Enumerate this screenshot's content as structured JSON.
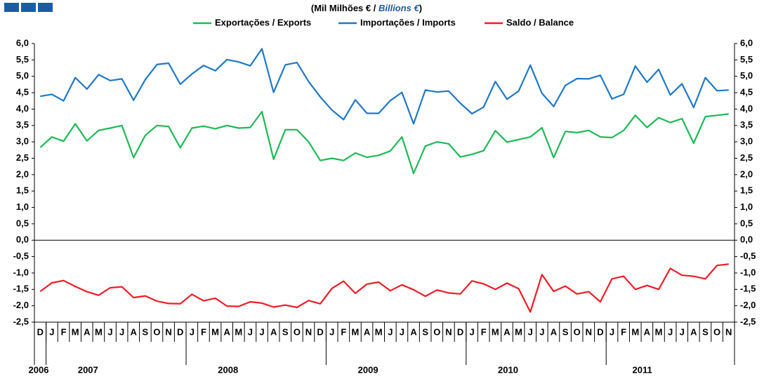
{
  "chart_data": {
    "type": "line",
    "subtitle": [
      "(Mil Milhões € / ",
      "Billions €",
      ")"
    ],
    "categories": [
      "D",
      "J",
      "F",
      "M",
      "A",
      "M",
      "J",
      "J",
      "A",
      "S",
      "O",
      "N",
      "D",
      "J",
      "F",
      "M",
      "A",
      "M",
      "J",
      "J",
      "A",
      "S",
      "O",
      "N",
      "D",
      "J",
      "F",
      "M",
      "A",
      "M",
      "J",
      "J",
      "A",
      "S",
      "O",
      "N",
      "D",
      "J",
      "F",
      "M",
      "A",
      "M",
      "J",
      "J",
      "A",
      "S",
      "O",
      "N",
      "D",
      "J",
      "F",
      "M",
      "A",
      "M",
      "J",
      "J",
      "A",
      "S",
      "O",
      "N"
    ],
    "years": [
      "2006",
      "2007",
      "2008",
      "2009",
      "2010",
      "2011"
    ],
    "series": [
      {
        "name": "Exportações / Exports",
        "color": "#1db954",
        "values": [
          2.83,
          3.15,
          3.02,
          3.55,
          3.03,
          3.35,
          3.42,
          3.5,
          2.52,
          3.2,
          3.5,
          3.47,
          2.82,
          3.42,
          3.48,
          3.4,
          3.5,
          3.42,
          3.44,
          3.92,
          2.47,
          3.37,
          3.37,
          3.0,
          2.43,
          2.5,
          2.43,
          2.66,
          2.53,
          2.59,
          2.72,
          3.15,
          2.04,
          2.87,
          3.0,
          2.94,
          2.54,
          2.62,
          2.73,
          3.34,
          2.99,
          3.07,
          3.15,
          3.43,
          2.52,
          3.32,
          3.28,
          3.35,
          3.15,
          3.13,
          3.35,
          3.81,
          3.44,
          3.74,
          3.59,
          3.71,
          2.96,
          3.77,
          3.81,
          3.85
        ]
      },
      {
        "name": "Importações / Imports",
        "color": "#1f78c8",
        "values": [
          4.39,
          4.45,
          4.25,
          4.96,
          4.61,
          5.05,
          4.87,
          4.92,
          4.27,
          4.9,
          5.36,
          5.4,
          4.76,
          5.07,
          5.33,
          5.17,
          5.51,
          5.44,
          5.32,
          5.84,
          4.51,
          5.35,
          5.42,
          4.84,
          4.37,
          3.97,
          3.68,
          4.28,
          3.87,
          3.87,
          4.26,
          4.51,
          3.55,
          4.58,
          4.52,
          4.55,
          4.18,
          3.86,
          4.06,
          4.84,
          4.3,
          4.55,
          5.34,
          4.48,
          4.08,
          4.72,
          4.93,
          4.92,
          5.03,
          4.31,
          4.45,
          5.31,
          4.82,
          5.21,
          4.43,
          4.77,
          4.05,
          4.96,
          4.56,
          4.58
        ]
      },
      {
        "name": "Saldo / Balance",
        "color": "#ee1c25",
        "values": [
          -1.56,
          -1.3,
          -1.23,
          -1.41,
          -1.57,
          -1.68,
          -1.45,
          -1.42,
          -1.75,
          -1.7,
          -1.86,
          -1.93,
          -1.94,
          -1.65,
          -1.85,
          -1.77,
          -2.01,
          -2.02,
          -1.88,
          -1.92,
          -2.04,
          -1.98,
          -2.05,
          -1.84,
          -1.94,
          -1.47,
          -1.25,
          -1.62,
          -1.34,
          -1.28,
          -1.54,
          -1.36,
          -1.51,
          -1.71,
          -1.52,
          -1.61,
          -1.64,
          -1.24,
          -1.33,
          -1.5,
          -1.31,
          -1.48,
          -2.19,
          -1.05,
          -1.56,
          -1.4,
          -1.64,
          -1.57,
          -1.88,
          -1.18,
          -1.1,
          -1.5,
          -1.38,
          -1.5,
          -0.86,
          -1.07,
          -1.1,
          -1.18,
          -0.77,
          -0.73
        ]
      }
    ],
    "ylim": [
      -2.5,
      6
    ],
    "yticks": [
      {
        "value": 6,
        "label": "6,0"
      },
      {
        "value": 5.5,
        "label": "5,5"
      },
      {
        "value": 5,
        "label": "5,0"
      },
      {
        "value": 4.5,
        "label": "4,5"
      },
      {
        "value": 4,
        "label": "4,0"
      },
      {
        "value": 3.5,
        "label": "3,5"
      },
      {
        "value": 3,
        "label": "3,0"
      },
      {
        "value": 2.5,
        "label": "2,5"
      },
      {
        "value": 2,
        "label": "2,0"
      },
      {
        "value": 1.5,
        "label": "1,5"
      },
      {
        "value": 1,
        "label": "1,0"
      },
      {
        "value": 0.5,
        "label": "0,5"
      },
      {
        "value": 0,
        "label": "0,0"
      },
      {
        "value": -0.5,
        "label": "-0,5"
      },
      {
        "value": -1,
        "label": "-1,0"
      },
      {
        "value": -1.5,
        "label": "-1,5"
      },
      {
        "value": -2,
        "label": "-2,0"
      },
      {
        "value": -2.5,
        "label": "-2,5"
      }
    ],
    "y2lim": [
      -2.5,
      6
    ],
    "y2ticks": [
      {
        "value": 6,
        "label": "6,0"
      },
      {
        "value": 5.5,
        "label": "5,5"
      },
      {
        "value": 5,
        "label": "5,0"
      },
      {
        "value": 4.5,
        "label": "4,5"
      },
      {
        "value": 4,
        "label": "4,0"
      },
      {
        "value": 3.5,
        "label": "3,5"
      },
      {
        "value": 3,
        "label": "3,0"
      },
      {
        "value": 2.5,
        "label": "2,5"
      },
      {
        "value": 2,
        "label": "2,0"
      },
      {
        "value": 1.5,
        "label": "1,5"
      },
      {
        "value": 1,
        "label": "1,0"
      },
      {
        "value": 0.5,
        "label": "0,5"
      },
      {
        "value": 0,
        "label": "0,0"
      },
      {
        "value": -0.5,
        "label": "-0,5"
      },
      {
        "value": -1,
        "label": "-1,0"
      },
      {
        "value": -1.5,
        "label": "-1,5"
      },
      {
        "value": -2,
        "label": "-2,0"
      },
      {
        "value": -2.5,
        "label": "-2,5"
      }
    ]
  }
}
